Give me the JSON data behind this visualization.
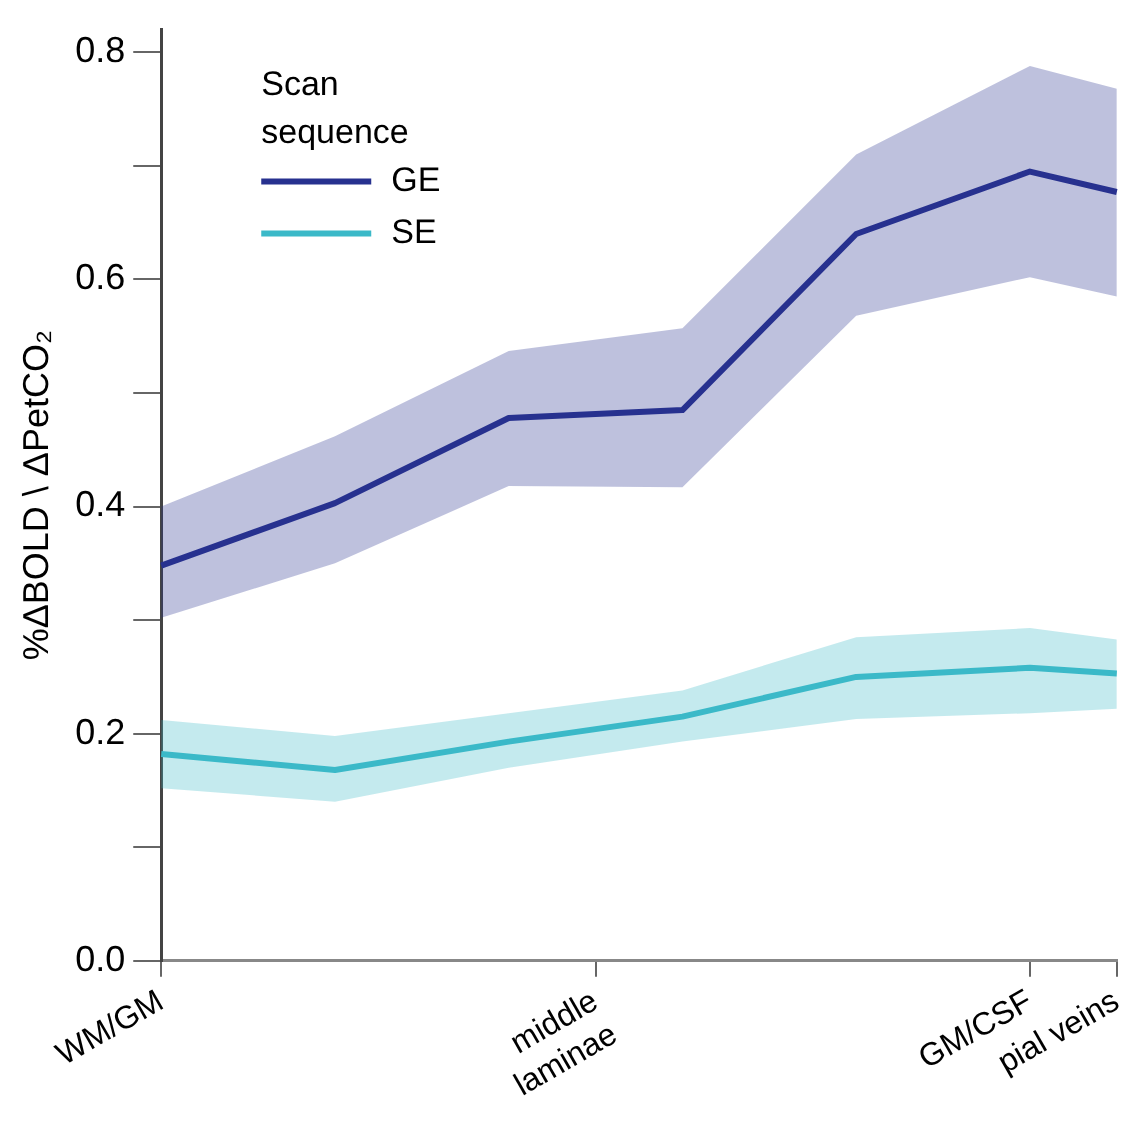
{
  "chart_data": {
    "type": "line",
    "ylabel": "%ΔBOLD \\ ΔPetCO₂",
    "legend_title": "Scan sequence",
    "categories": [
      "WM/GM",
      null,
      null,
      null,
      null,
      "middle\nlaminae",
      null,
      null,
      null,
      null,
      "GM/CSF",
      "pial veins"
    ],
    "ylim": [
      0,
      0.82
    ],
    "yticks": [
      {
        "value": 0,
        "label": "0.0"
      },
      {
        "value": 0.1,
        "label": null
      },
      {
        "value": 0.2,
        "label": "0.2"
      },
      {
        "value": 0.3,
        "label": null
      },
      {
        "value": 0.4,
        "label": "0.4"
      },
      {
        "value": 0.5,
        "label": null
      },
      {
        "value": 0.6,
        "label": "0.6"
      },
      {
        "value": 0.7,
        "label": null
      },
      {
        "value": 0.8,
        "label": "0.8"
      }
    ],
    "series": [
      {
        "name": "GE",
        "color": "#27318f",
        "values": [
          0.348,
          null,
          0.403,
          null,
          0.478,
          null,
          0.485,
          null,
          0.64,
          null,
          0.695,
          0.677
        ],
        "lower": [
          0.302,
          null,
          0.35,
          null,
          0.418,
          null,
          0.417,
          null,
          0.568,
          null,
          0.602,
          0.585
        ],
        "upper": [
          0.4,
          null,
          0.462,
          null,
          0.537,
          null,
          0.557,
          null,
          0.71,
          null,
          0.788,
          0.768
        ]
      },
      {
        "name": "SE",
        "color": "#3bb9c8",
        "values": [
          0.182,
          null,
          0.168,
          null,
          0.193,
          null,
          0.215,
          null,
          0.25,
          null,
          0.258,
          0.253
        ],
        "lower": [
          0.152,
          null,
          0.14,
          null,
          0.17,
          null,
          0.193,
          null,
          0.213,
          null,
          0.218,
          0.222
        ],
        "upper": [
          0.212,
          null,
          0.198,
          null,
          0.218,
          null,
          0.238,
          null,
          0.285,
          null,
          0.293,
          0.283
        ]
      }
    ],
    "grid": false,
    "legend": "top left",
    "marker": "none",
    "line_style": "solid"
  }
}
